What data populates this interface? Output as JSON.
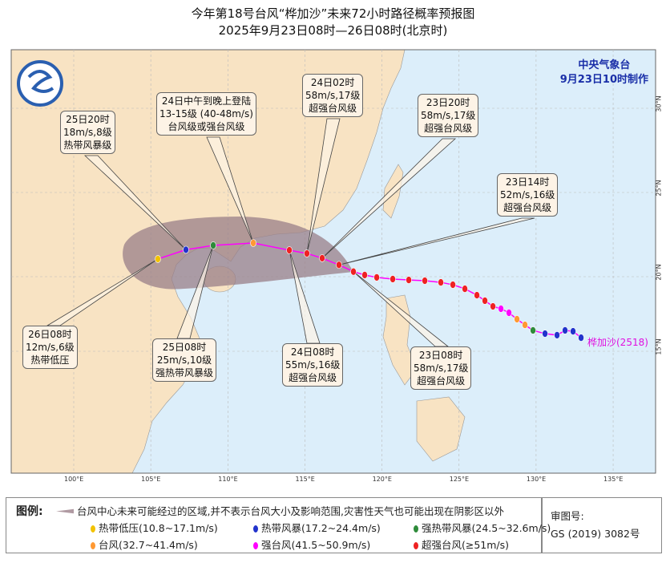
{
  "title": {
    "line1": "今年第18号台风“桦加沙”未来72小时路径概率预报图",
    "line2": "2025年9月23日08时—26日08时(北京时)"
  },
  "agency": {
    "name": "中央气象台",
    "issued": "9月23日10时制作"
  },
  "typhoon_label": "桦加沙(2518)",
  "colors": {
    "land": "#f8e3c3",
    "sea": "#dceefa",
    "cone": "#9a7f88",
    "track": "#ff00ff",
    "TD": "#f2c200",
    "TS": "#2233cc",
    "STS": "#2e8b3a",
    "TY": "#ff9933",
    "STY": "#ff00ff",
    "SuperTY": "#ee2222"
  },
  "axes": {
    "lon_ticks": [
      "100°E",
      "105°E",
      "110°E",
      "115°E",
      "120°E",
      "125°E",
      "130°E",
      "135°E"
    ],
    "lat_ticks": [
      "15°N",
      "20°N",
      "25°N",
      "30°N"
    ]
  },
  "forecast": [
    {
      "time": "23日08时",
      "lon": 118.15,
      "lat": 20.3,
      "cat": "SuperTY",
      "lines": [
        "23日08时",
        "58m/s,17级",
        "超强台风级"
      ]
    },
    {
      "time": "23日14时",
      "lon": 117.21,
      "lat": 20.7,
      "cat": "SuperTY",
      "lines": [
        "23日14时",
        "52m/s,16级",
        "超强台风级"
      ]
    },
    {
      "time": "23日20时",
      "lon": 116.12,
      "lat": 21.1,
      "cat": "SuperTY",
      "lines": [
        "23日20时",
        "58m/s,17级",
        "超强台风级"
      ]
    },
    {
      "time": "24日02时",
      "lon": 115.13,
      "lat": 21.38,
      "cat": "SuperTY",
      "lines": [
        "24日02时",
        "58m/s,17级",
        "超强台风级"
      ]
    },
    {
      "time": "24日08时",
      "lon": 113.99,
      "lat": 21.57,
      "cat": "SuperTY",
      "lines": [
        "24日08时",
        "55m/s,16级",
        "超强台风级"
      ]
    },
    {
      "time": "24日中午到晚上登陆",
      "lon": 111.65,
      "lat": 22.0,
      "cat": "TY",
      "lines": [
        "24日中午到晚上登陆",
        "13-15级 (40-48m/s)",
        "台风级或强台风级"
      ]
    },
    {
      "time": "25日08时",
      "lon": 109.05,
      "lat": 21.86,
      "cat": "STS",
      "lines": [
        "25日08时",
        "25m/s,10级",
        "强热带风暴级"
      ]
    },
    {
      "time": "25日20时",
      "lon": 107.28,
      "lat": 21.6,
      "cat": "TS",
      "lines": [
        "25日20时",
        "18m/s,8级",
        "热带风暴级"
      ]
    },
    {
      "time": "26日08时",
      "lon": 105.46,
      "lat": 21.05,
      "cat": "TD",
      "lines": [
        "26日08时",
        "12m/s,6级",
        "热带低压"
      ]
    }
  ],
  "past_track": [
    {
      "lon": 132.92,
      "lat": 15.91,
      "cat": "TS"
    },
    {
      "lon": 132.4,
      "lat": 16.34,
      "cat": "TS"
    },
    {
      "lon": 131.88,
      "lat": 16.4,
      "cat": "TS"
    },
    {
      "lon": 131.36,
      "lat": 16.08,
      "cat": "TS"
    },
    {
      "lon": 130.58,
      "lat": 16.18,
      "cat": "TS"
    },
    {
      "lon": 129.8,
      "lat": 16.4,
      "cat": "STS"
    },
    {
      "lon": 129.28,
      "lat": 16.77,
      "cat": "TY"
    },
    {
      "lon": 128.76,
      "lat": 17.15,
      "cat": "TY"
    },
    {
      "lon": 128.24,
      "lat": 17.58,
      "cat": "STY"
    },
    {
      "lon": 127.72,
      "lat": 17.85,
      "cat": "STY"
    },
    {
      "lon": 127.2,
      "lat": 18.01,
      "cat": "SuperTY"
    },
    {
      "lon": 126.68,
      "lat": 18.39,
      "cat": "SuperTY"
    },
    {
      "lon": 126.16,
      "lat": 18.76,
      "cat": "SuperTY"
    },
    {
      "lon": 125.38,
      "lat": 19.19,
      "cat": "SuperTY"
    },
    {
      "lon": 124.6,
      "lat": 19.46,
      "cat": "SuperTY"
    },
    {
      "lon": 123.82,
      "lat": 19.62,
      "cat": "SuperTY"
    },
    {
      "lon": 122.78,
      "lat": 19.73,
      "cat": "SuperTY"
    },
    {
      "lon": 121.74,
      "lat": 19.78,
      "cat": "SuperTY"
    },
    {
      "lon": 120.7,
      "lat": 19.84,
      "cat": "SuperTY"
    },
    {
      "lon": 119.66,
      "lat": 19.95,
      "cat": "SuperTY"
    },
    {
      "lon": 118.88,
      "lat": 20.1,
      "cat": "SuperTY"
    }
  ],
  "legend": {
    "title": "图例:",
    "cone": "台风中心未来可能经过的区域,并不表示台风大小及影响范围,灾害性天气也可能出现在阴影区以外",
    "items": [
      {
        "cat": "TD",
        "label": "热带低压(10.8~17.1m/s)"
      },
      {
        "cat": "TS",
        "label": "热带风暴(17.2~24.4m/s)"
      },
      {
        "cat": "STS",
        "label": "强热带风暴(24.5~32.6m/s)"
      },
      {
        "cat": "TY",
        "label": "台风(32.7~41.4m/s)"
      },
      {
        "cat": "STY",
        "label": "强台风(41.5~50.9m/s)"
      },
      {
        "cat": "SuperTY",
        "label": "超强台风(≥51m/s)"
      }
    ]
  },
  "approval": {
    "label": "审图号:",
    "number": "GS (2019) 3082号"
  }
}
